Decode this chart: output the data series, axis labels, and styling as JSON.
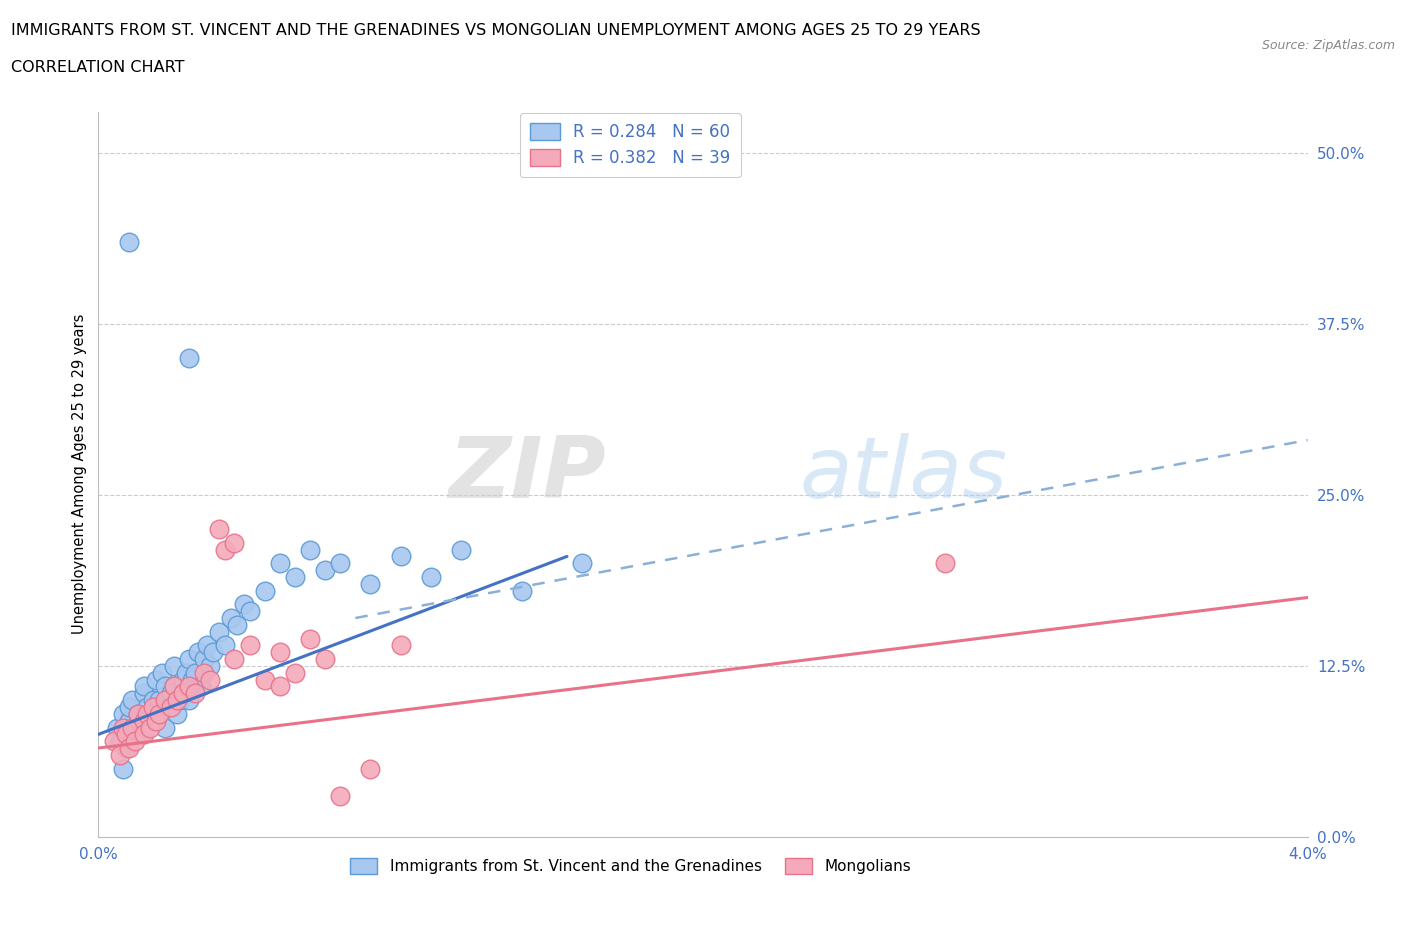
{
  "title_line1": "IMMIGRANTS FROM ST. VINCENT AND THE GRENADINES VS MONGOLIAN UNEMPLOYMENT AMONG AGES 25 TO 29 YEARS",
  "title_line2": "CORRELATION CHART",
  "source_text": "Source: ZipAtlas.com",
  "ylabel": "Unemployment Among Ages 25 to 29 years",
  "ytick_values": [
    0.0,
    12.5,
    25.0,
    37.5,
    50.0
  ],
  "xlim": [
    0.0,
    4.0
  ],
  "ylim": [
    0.0,
    53.0
  ],
  "blue_fill_color": "#A8C8F0",
  "blue_edge_color": "#5B9BD5",
  "pink_fill_color": "#F4AABB",
  "pink_edge_color": "#E8728A",
  "blue_trend_color": "#4472C4",
  "pink_trend_color": "#E8728A",
  "dashed_trend_color": "#8AB0D8",
  "legend_text_color": "#4472C4",
  "legend_r_blue": "R = 0.284",
  "legend_n_blue": "N = 60",
  "legend_r_pink": "R = 0.382",
  "legend_n_pink": "N = 39",
  "legend_label_blue": "Immigrants from St. Vincent and the Grenadines",
  "legend_label_pink": "Mongolians",
  "watermark_zip": "ZIP",
  "watermark_atlas": "atlas",
  "blue_x": [
    0.06,
    0.07,
    0.08,
    0.09,
    0.1,
    0.1,
    0.11,
    0.12,
    0.13,
    0.14,
    0.15,
    0.15,
    0.16,
    0.17,
    0.18,
    0.18,
    0.19,
    0.2,
    0.21,
    0.22,
    0.22,
    0.23,
    0.24,
    0.25,
    0.25,
    0.26,
    0.27,
    0.28,
    0.29,
    0.3,
    0.3,
    0.31,
    0.32,
    0.33,
    0.34,
    0.35,
    0.36,
    0.37,
    0.38,
    0.4,
    0.42,
    0.44,
    0.46,
    0.48,
    0.5,
    0.55,
    0.6,
    0.65,
    0.7,
    0.75,
    0.8,
    0.9,
    1.0,
    1.1,
    1.2,
    1.4,
    1.6,
    0.1,
    0.3,
    0.08
  ],
  "blue_y": [
    8.0,
    7.0,
    9.0,
    6.5,
    8.5,
    9.5,
    10.0,
    8.0,
    9.0,
    7.5,
    10.5,
    11.0,
    9.5,
    8.5,
    10.0,
    9.0,
    11.5,
    10.0,
    12.0,
    11.0,
    8.0,
    9.5,
    10.5,
    12.5,
    11.0,
    9.0,
    10.0,
    11.5,
    12.0,
    13.0,
    10.0,
    11.5,
    12.0,
    13.5,
    11.0,
    13.0,
    14.0,
    12.5,
    13.5,
    15.0,
    14.0,
    16.0,
    15.5,
    17.0,
    16.5,
    18.0,
    20.0,
    19.0,
    21.0,
    19.5,
    20.0,
    18.5,
    20.5,
    19.0,
    21.0,
    18.0,
    20.0,
    43.5,
    35.0,
    5.0
  ],
  "pink_x": [
    0.05,
    0.07,
    0.08,
    0.09,
    0.1,
    0.11,
    0.12,
    0.13,
    0.15,
    0.15,
    0.16,
    0.17,
    0.18,
    0.19,
    0.2,
    0.22,
    0.24,
    0.25,
    0.26,
    0.28,
    0.3,
    0.32,
    0.35,
    0.37,
    0.4,
    0.42,
    0.45,
    0.5,
    0.55,
    0.6,
    0.65,
    0.7,
    0.75,
    0.8,
    0.9,
    1.0,
    2.8,
    0.45,
    0.6
  ],
  "pink_y": [
    7.0,
    6.0,
    8.0,
    7.5,
    6.5,
    8.0,
    7.0,
    9.0,
    8.5,
    7.5,
    9.0,
    8.0,
    9.5,
    8.5,
    9.0,
    10.0,
    9.5,
    11.0,
    10.0,
    10.5,
    11.0,
    10.5,
    12.0,
    11.5,
    22.5,
    21.0,
    13.0,
    14.0,
    11.5,
    13.5,
    12.0,
    14.5,
    13.0,
    3.0,
    5.0,
    14.0,
    20.0,
    21.5,
    11.0
  ],
  "blue_trend_x0": 0.0,
  "blue_trend_y0": 7.5,
  "blue_trend_x1": 1.55,
  "blue_trend_y1": 20.5,
  "pink_trend_x0": 0.0,
  "pink_trend_y0": 6.5,
  "pink_trend_x1": 4.0,
  "pink_trend_y1": 17.5,
  "dashed_x0": 0.85,
  "dashed_y0": 16.0,
  "dashed_x1": 4.0,
  "dashed_y1": 29.0
}
